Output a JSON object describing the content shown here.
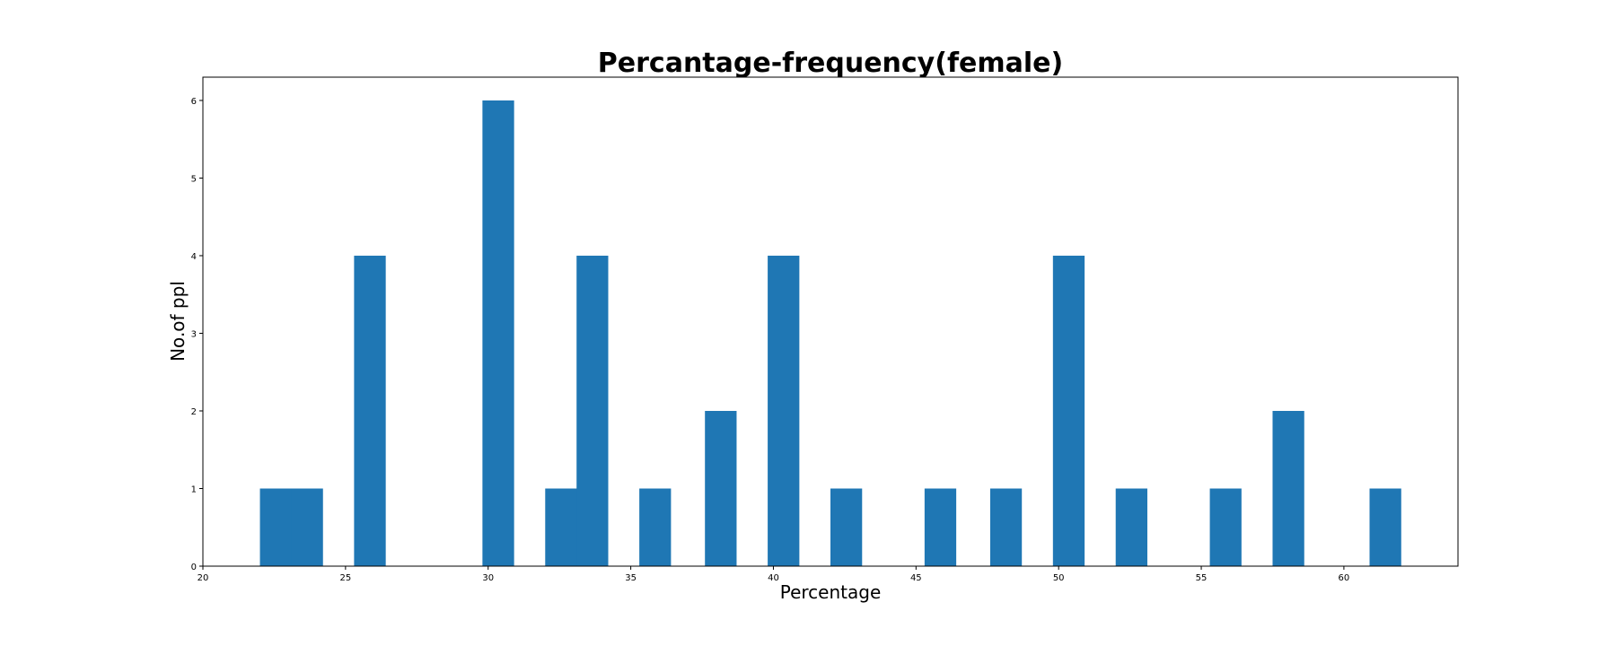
{
  "chart_data": {
    "type": "bar",
    "title": "Percantage-frequency(female)",
    "xlabel": "Percentage",
    "ylabel": "No.of ppl",
    "xlim": [
      20,
      64
    ],
    "ylim": [
      0,
      6.3
    ],
    "xticks": [
      "20",
      "25",
      "30",
      "35",
      "40",
      "45",
      "50",
      "55",
      "60"
    ],
    "yticks": [
      "0",
      "1",
      "2",
      "3",
      "4",
      "5",
      "6"
    ],
    "bin_width": 1.11,
    "series": [
      {
        "color": "#1f77b4",
        "bins": [
          {
            "x": 22.0,
            "value": 1
          },
          {
            "x": 23.1,
            "value": 1
          },
          {
            "x": 25.3,
            "value": 4
          },
          {
            "x": 29.8,
            "value": 6
          },
          {
            "x": 32.0,
            "value": 1
          },
          {
            "x": 33.1,
            "value": 4
          },
          {
            "x": 35.3,
            "value": 1
          },
          {
            "x": 37.6,
            "value": 2
          },
          {
            "x": 39.8,
            "value": 4
          },
          {
            "x": 42.0,
            "value": 1
          },
          {
            "x": 45.3,
            "value": 1
          },
          {
            "x": 47.6,
            "value": 1
          },
          {
            "x": 49.8,
            "value": 4
          },
          {
            "x": 52.0,
            "value": 1
          },
          {
            "x": 55.3,
            "value": 1
          },
          {
            "x": 57.5,
            "value": 2
          },
          {
            "x": 60.9,
            "value": 1
          }
        ]
      }
    ],
    "grid": false,
    "legend": "none"
  }
}
